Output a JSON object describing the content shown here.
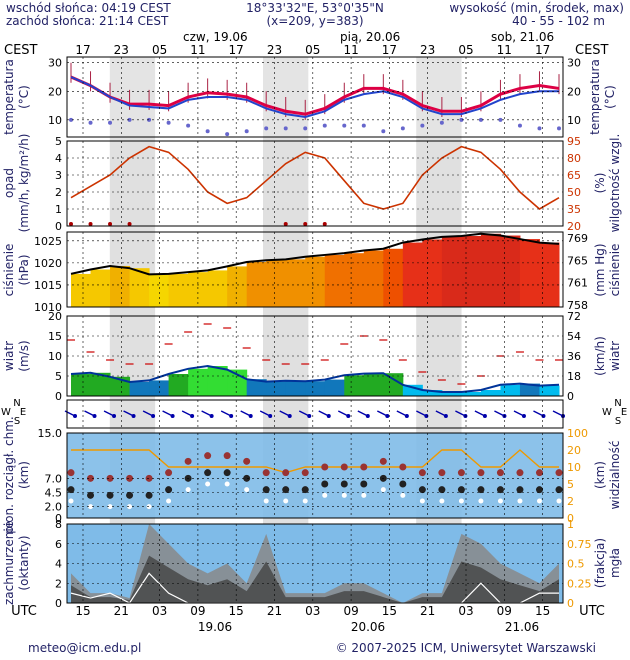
{
  "header": {
    "sunrise": "wschód słońca: 04:19 CEST",
    "sunset": "zachód słońca: 21:14 CEST",
    "coords": "18°33'32\"E, 53°0'35\"N",
    "grid": "(x=209,  y=383)",
    "elevation_title": "wysokość (min, środek, max)",
    "elevation_values": "40 - 55 - 102 m"
  },
  "top_axis": {
    "tz": "CEST",
    "hours": [
      "17",
      "23",
      "05",
      "11",
      "17",
      "23",
      "05",
      "11",
      "17",
      "23",
      "05",
      "11",
      "17"
    ],
    "days": [
      "czw, 19.06",
      "pią, 20.06",
      "sob, 21.06"
    ]
  },
  "bottom_axis": {
    "tz": "UTC",
    "hours": [
      "15",
      "21",
      "03",
      "09",
      "15",
      "21",
      "03",
      "09",
      "15",
      "21",
      "03",
      "09",
      "15"
    ],
    "dates": [
      "19.06",
      "20.06",
      "21.06"
    ]
  },
  "panels": {
    "temp": {
      "left": "temperatura",
      "left_unit": "(°C)",
      "right": "temperatura",
      "right_unit": "(°C)",
      "ticks": [
        "10",
        "20",
        "30"
      ]
    },
    "precip": {
      "left": "opad",
      "left_unit": "(mm/h, kg/m²/h)",
      "right": "wilgotność wzgl.",
      "right_unit": "(%)",
      "ticks_left": [
        "0",
        "1",
        "2",
        "3",
        "4",
        "5"
      ],
      "ticks_right": [
        "20",
        "35",
        "50",
        "65",
        "80",
        "95"
      ]
    },
    "press": {
      "left": "ciśnienie",
      "left_unit": "(hPa)",
      "right": "ciśnienie",
      "right_unit": "(mm Hg)",
      "ticks_left": [
        "1010",
        "1015",
        "1020",
        "1025"
      ],
      "ticks_right": [
        "758",
        "761",
        "765",
        "769"
      ]
    },
    "wind": {
      "left": "wiatr",
      "left_unit": "(m/s)",
      "right": "wiatr",
      "right_unit": "(km/h)",
      "ticks_left": [
        "0",
        "5",
        "10",
        "15",
        "20"
      ],
      "ticks_right": [
        "0",
        "18",
        "36",
        "54",
        "72"
      ]
    },
    "dir": {
      "w": "W",
      "n": "N",
      "s": "S",
      "e": "E"
    },
    "cloud": {
      "left": "pion. rozciągł. chm.",
      "left_unit": "(km)",
      "right": "widzialność",
      "right_unit": "(km)",
      "ticks_left": [
        "0",
        "2.0",
        "4.5",
        "7.0",
        "15.0"
      ],
      "ticks_right": [
        "0",
        "2",
        "5",
        "10",
        "20",
        "100"
      ]
    },
    "cover": {
      "left": "zachmurzenie",
      "left_unit": "(oktanty)",
      "right": "mgła",
      "right_unit": "(frakcja)",
      "ticks_left": [
        "0",
        "2",
        "4",
        "6",
        "8"
      ],
      "ticks_right": [
        "0",
        "0.25",
        "0.5",
        "0.75",
        "1"
      ]
    }
  },
  "footer": {
    "email": "meteo@icm.edu.pl",
    "copyright": "© 2007-2025 ICM, Uniwersytet Warszawski"
  },
  "colors": {
    "night": "#d6d6d6",
    "temp_line": "#dd0044",
    "dew_line": "#2244cc",
    "humidity": "#cc3300",
    "pressure_line": "#000000",
    "wind_line": "#cc0000",
    "cloud_bg": "#7fbbe8"
  },
  "chart_data": [
    {
      "type": "line",
      "panel": "temperature",
      "unit": "°C",
      "ylim": [
        4,
        32
      ],
      "series": [
        {
          "x_hours_cest": [
            17,
            20,
            23,
            2,
            5,
            8,
            11,
            14,
            17,
            20,
            23,
            2,
            5,
            8,
            11,
            14,
            17,
            20,
            23,
            2,
            5,
            8,
            11,
            14,
            17,
            20
          ],
          "values": [
            25,
            22,
            18,
            15.5,
            15.5,
            15,
            18,
            19.5,
            19,
            18,
            15,
            13,
            12,
            14,
            18,
            21,
            21,
            19,
            15,
            13,
            13,
            15,
            19,
            21,
            22,
            21
          ]
        },
        {
          "values": [
            25,
            22,
            18,
            15,
            14.5,
            14,
            17,
            18,
            18,
            17,
            14,
            12,
            11,
            13,
            17,
            19,
            20,
            18,
            14,
            12,
            12,
            14,
            17,
            19,
            20,
            20
          ]
        },
        {
          "values": [
            10,
            9,
            9,
            10,
            10,
            9,
            8,
            6,
            5,
            6,
            7,
            7,
            7,
            8,
            8,
            8,
            6,
            7,
            8,
            9,
            10,
            10,
            10,
            8,
            7,
            7
          ]
        }
      ]
    },
    {
      "type": "line",
      "panel": "precipitation_humidity",
      "unit": "mm/h / %",
      "ylim": [
        0,
        5
      ],
      "series": [
        {
          "values": [
            0,
            0,
            0,
            0,
            0,
            0,
            0,
            0,
            0,
            0,
            0,
            0,
            0,
            0,
            0,
            0,
            0,
            0,
            0,
            0,
            0,
            0,
            0,
            0,
            0,
            0
          ]
        },
        {
          "values": [
            45,
            55,
            65,
            80,
            90,
            85,
            70,
            50,
            40,
            45,
            60,
            75,
            85,
            80,
            60,
            40,
            35,
            40,
            65,
            80,
            90,
            85,
            70,
            50,
            35,
            45
          ]
        }
      ]
    },
    {
      "type": "area",
      "panel": "pressure",
      "unit": "hPa",
      "ylim": [
        1010,
        1027
      ],
      "series": [
        {
          "values": [
            1017.5,
            1018.5,
            1019.3,
            1018.8,
            1017.4,
            1017.5,
            1017.9,
            1018.3,
            1019.2,
            1020.2,
            1020.6,
            1020.8,
            1021.4,
            1021.8,
            1022.2,
            1022.8,
            1023.2,
            1024.6,
            1025.3,
            1025.9,
            1026.1,
            1026.6,
            1026.2,
            1025.4,
            1024.6,
            1024.3
          ]
        }
      ]
    },
    {
      "type": "line",
      "panel": "wind",
      "unit": "m/s",
      "ylim": [
        0,
        20
      ],
      "series": [
        {
          "values": [
            5.5,
            5.8,
            4.8,
            3.5,
            3.9,
            5.5,
            6.8,
            7.5,
            6.6,
            4.2,
            3.6,
            3.8,
            3.7,
            4.1,
            5.2,
            5.6,
            5.7,
            2.8,
            1.5,
            1.0,
            1.0,
            1.5,
            2.8,
            3.1,
            2.6,
            2.8
          ]
        },
        {
          "values": [
            14,
            11,
            9,
            8,
            8,
            13,
            16,
            18,
            17,
            12,
            9,
            8,
            8,
            9,
            13,
            15,
            14,
            9,
            6,
            4,
            3,
            5,
            10,
            11,
            9,
            9
          ]
        }
      ]
    },
    {
      "type": "scatter",
      "panel": "cloud_visibility",
      "unit": "km",
      "ylim": [
        0,
        15
      ],
      "series": [
        {
          "values": [
            12,
            12,
            12,
            12,
            12,
            9,
            9,
            9,
            9,
            9,
            9,
            8,
            9,
            9,
            9,
            9,
            9,
            9,
            9,
            12,
            12,
            9,
            9,
            12,
            9,
            9
          ]
        },
        {
          "values": [
            5,
            4,
            4,
            4,
            4,
            5,
            7,
            8,
            8,
            7,
            5,
            5,
            5,
            6,
            6,
            6,
            7,
            6,
            5,
            5,
            5,
            5,
            5,
            5,
            5,
            5
          ]
        }
      ]
    },
    {
      "type": "area",
      "panel": "cloud_cover",
      "unit": "oktanty",
      "ylim": [
        0,
        8
      ],
      "series": [
        {
          "values": [
            3,
            1,
            1,
            0.5,
            8,
            6,
            4,
            3,
            4,
            2,
            7,
            1,
            1,
            1,
            2,
            2,
            1,
            0,
            1,
            1,
            7,
            6,
            4,
            3,
            2,
            4
          ]
        },
        {
          "values": [
            1,
            0.5,
            1,
            0,
            3,
            1,
            0,
            0,
            0,
            0,
            0,
            0,
            0,
            0,
            0,
            0,
            0,
            0,
            0,
            0,
            0,
            2,
            0,
            0,
            1,
            1
          ]
        }
      ]
    }
  ]
}
